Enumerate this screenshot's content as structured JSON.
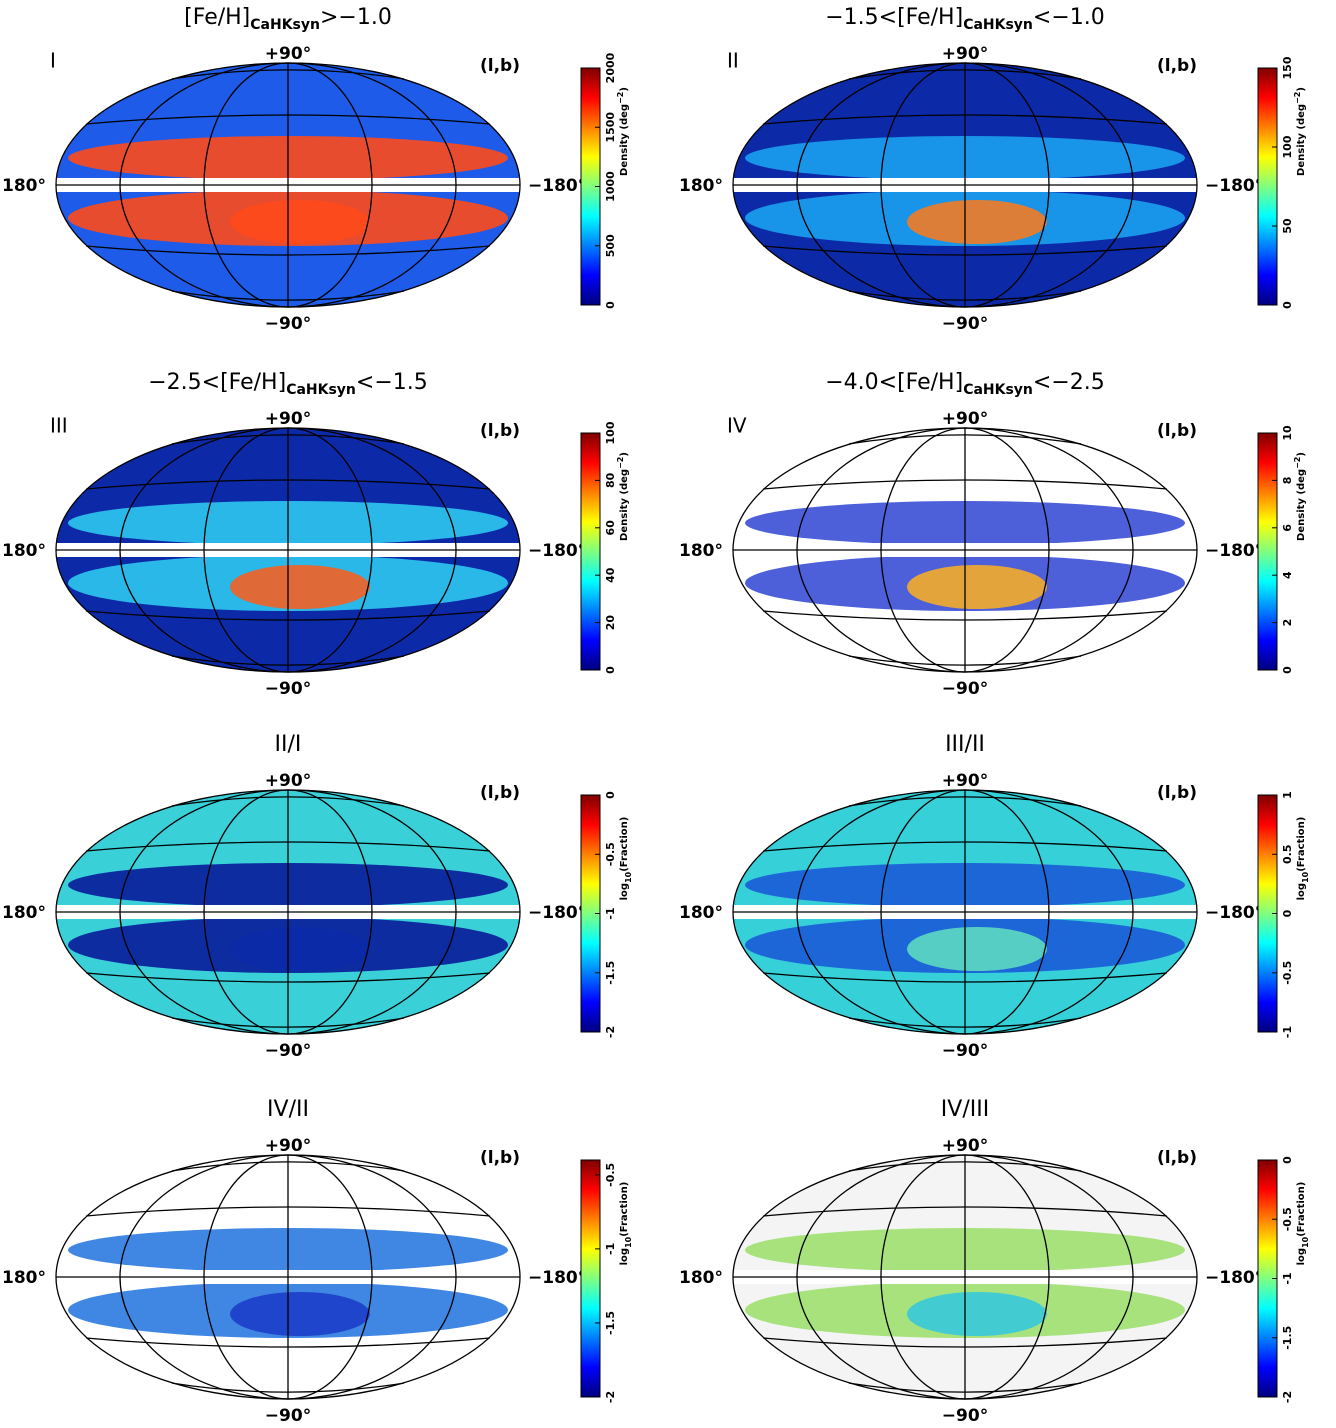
{
  "panels": [
    {
      "title": {
        "pre": "[Fe/H]",
        "sub": "CaHKsyn",
        "post": ">−1.0"
      },
      "roman": "I",
      "coord": "(l,b)",
      "top": "+90°",
      "bottom": "−90°",
      "left": "180°",
      "right": "−180°",
      "colorbar": {
        "label": {
          "pre": "Density (deg",
          "script": "−2",
          "post": ")"
        },
        "lim": [
          0,
          2000
        ],
        "ticks": [
          0,
          500,
          1000,
          1500,
          2000
        ]
      }
    },
    {
      "title": {
        "pre": "−1.5<[Fe/H]",
        "sub": "CaHKsyn",
        "post": "<−1.0"
      },
      "roman": "II",
      "coord": "(l,b)",
      "top": "+90°",
      "bottom": "−90°",
      "left": "180°",
      "right": "−180°",
      "colorbar": {
        "label": {
          "pre": "Density (deg",
          "script": "−2",
          "post": ")"
        },
        "lim": [
          0,
          150
        ],
        "ticks": [
          0,
          50,
          100,
          150
        ]
      }
    },
    {
      "title": {
        "pre": "−2.5<[Fe/H]",
        "sub": "CaHKsyn",
        "post": "<−1.5"
      },
      "roman": "III",
      "coord": "(l,b)",
      "top": "+90°",
      "bottom": "−90°",
      "left": "180°",
      "right": "−180°",
      "colorbar": {
        "label": {
          "pre": "Density (deg",
          "script": "−2",
          "post": ")"
        },
        "lim": [
          0,
          100
        ],
        "ticks": [
          0,
          20,
          40,
          60,
          80,
          100
        ]
      }
    },
    {
      "title": {
        "pre": "−4.0<[Fe/H]",
        "sub": "CaHKsyn",
        "post": "<−2.5"
      },
      "roman": "IV",
      "coord": "(l,b)",
      "top": "+90°",
      "bottom": "−90°",
      "left": "180°",
      "right": "−180°",
      "colorbar": {
        "label": {
          "pre": "Density (deg",
          "script": "−2",
          "post": ")"
        },
        "lim": [
          0,
          10
        ],
        "ticks": [
          0,
          2,
          4,
          6,
          8,
          10
        ]
      }
    },
    {
      "title": {
        "pre": "II/I"
      },
      "coord": "(l,b)",
      "top": "+90°",
      "bottom": "−90°",
      "left": "180°",
      "right": "−180°",
      "colorbar": {
        "label": {
          "pre": "log",
          "script": "10",
          "post": "(Fraction)"
        },
        "lim": [
          -2,
          0
        ],
        "ticks": [
          -2,
          -1.5,
          -1,
          -0.5,
          0
        ]
      }
    },
    {
      "title": {
        "pre": "III/II"
      },
      "coord": "(l,b)",
      "top": "+90°",
      "bottom": "−90°",
      "left": "180°",
      "right": "−180°",
      "colorbar": {
        "label": {
          "pre": "log",
          "script": "10",
          "post": "(Fraction)"
        },
        "lim": [
          -1,
          1
        ],
        "ticks": [
          -1,
          -0.5,
          0,
          0.5,
          1
        ]
      }
    },
    {
      "title": {
        "pre": "IV/II"
      },
      "coord": "(l,b)",
      "top": "+90°",
      "bottom": "−90°",
      "left": "180°",
      "right": "−180°",
      "colorbar": {
        "label": {
          "pre": "log",
          "script": "10",
          "post": "(Fraction)"
        },
        "lim": [
          -2,
          -0.4
        ],
        "ticks": [
          -2,
          -1.5,
          -1,
          -0.5
        ]
      }
    },
    {
      "title": {
        "pre": "IV/III"
      },
      "coord": "(l,b)",
      "top": "+90°",
      "bottom": "−90°",
      "left": "180°",
      "right": "−180°",
      "colorbar": {
        "label": {
          "pre": "log",
          "script": "10",
          "post": "(Fraction)"
        },
        "lim": [
          -2,
          0
        ],
        "ticks": [
          -2,
          -1.5,
          -1,
          -0.5,
          0
        ]
      }
    }
  ]
}
